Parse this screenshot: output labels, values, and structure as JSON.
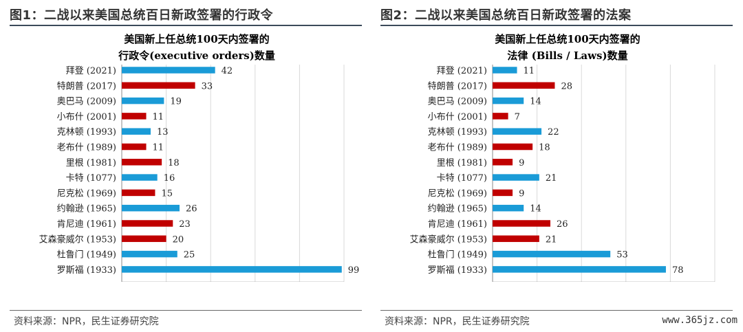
{
  "panels": [
    {
      "figure_title": "图1：二战以来美国总统百日新政签署的行政令",
      "source": "资料来源：NPR，民生证券研究院",
      "chart_data": {
        "type": "bar",
        "orientation": "horizontal",
        "title_lines": [
          "美国新上任总统100天内签署的",
          "行政令(executive orders)数量"
        ],
        "categories": [
          "拜登 (2021)",
          "特朗普 (2017)",
          "奥巴马 (2009)",
          "小布什 (2001)",
          "克林顿 (1993)",
          "老布什 (1989)",
          "里根 (1981)",
          "卡特 (1077)",
          "尼克松 (1969)",
          "约翰逊 (1965)",
          "肯尼迪 (1961)",
          "艾森豪威尔 (1953)",
          "杜鲁门 (1949)",
          "罗斯福 (1933)"
        ],
        "values": [
          42,
          33,
          19,
          11,
          13,
          11,
          18,
          16,
          15,
          26,
          23,
          20,
          25,
          99
        ],
        "bar_colors": [
          "blue",
          "red",
          "blue",
          "red",
          "blue",
          "red",
          "red",
          "blue",
          "red",
          "blue",
          "red",
          "red",
          "blue",
          "blue"
        ],
        "xlim": [
          0,
          100
        ],
        "xticks": [
          0,
          20,
          40,
          60,
          80,
          100
        ],
        "grid": true
      }
    },
    {
      "figure_title": "图2：二战以来美国总统百日新政签署的法案",
      "source": "资料来源：NPR，民生证券研究院",
      "chart_data": {
        "type": "bar",
        "orientation": "horizontal",
        "title_lines": [
          "美国新上任总统100天内签署的",
          "法律 (Bills / Laws)数量"
        ],
        "categories": [
          "拜登 (2021)",
          "特朗普 (2017)",
          "奥巴马 (2009)",
          "小布什 (2001)",
          "克林顿 (1993)",
          "老布什 (1989)",
          "里根 (1981)",
          "卡特 (1077)",
          "尼克松 (1969)",
          "约翰逊 (1965)",
          "肯尼迪 (1961)",
          "艾森豪威尔 (1953)",
          "杜鲁门 (1949)",
          "罗斯福 (1933)"
        ],
        "values": [
          11,
          28,
          14,
          7,
          22,
          18,
          9,
          21,
          9,
          14,
          26,
          21,
          53,
          78
        ],
        "bar_colors": [
          "blue",
          "red",
          "blue",
          "red",
          "blue",
          "red",
          "red",
          "blue",
          "red",
          "blue",
          "red",
          "red",
          "blue",
          "blue"
        ],
        "xlim": [
          0,
          100
        ],
        "xticks": [
          0,
          20,
          40,
          60,
          80,
          100
        ],
        "grid": true
      }
    }
  ],
  "colors": {
    "blue": "#1a9bd7",
    "red": "#c00000",
    "grid": "#d9d9d9",
    "axis": "#888888"
  },
  "watermark": "www.365jz.com"
}
